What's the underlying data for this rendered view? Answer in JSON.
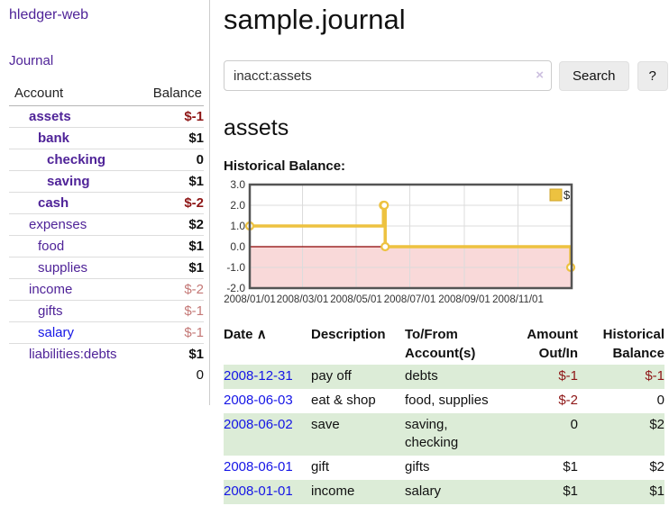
{
  "app": {
    "title": "hledger-web",
    "nav_journal_label": "Journal"
  },
  "colors": {
    "link_purple": "#4f2398",
    "link_blue": "#1515e6",
    "negative_strong": "#8e1616",
    "negative_soft": "#c47876",
    "row_stripe_green": "#dcecd7",
    "divider_gray": "#cccccc",
    "button_bg": "#ececec",
    "chart_line_gold": "#edc240"
  },
  "sidebar": {
    "header": {
      "account": "Account",
      "balance": "Balance"
    },
    "accounts": [
      {
        "name": "assets",
        "indent": 1,
        "bold": true,
        "balance": "$-1",
        "balance_class": "neg"
      },
      {
        "name": "bank",
        "indent": 2,
        "bold": true,
        "balance": "$1",
        "balance_class": ""
      },
      {
        "name": "checking",
        "indent": 3,
        "bold": true,
        "balance": "0",
        "balance_class": ""
      },
      {
        "name": "saving",
        "indent": 3,
        "bold": true,
        "balance": "$1",
        "balance_class": ""
      },
      {
        "name": "cash",
        "indent": 2,
        "bold": true,
        "balance": "$-2",
        "balance_class": "neg"
      },
      {
        "name": "expenses",
        "indent": 1,
        "bold": false,
        "balance": "$2",
        "balance_class": ""
      },
      {
        "name": "food",
        "indent": 2,
        "bold": false,
        "balance": "$1",
        "balance_class": ""
      },
      {
        "name": "supplies",
        "indent": 2,
        "bold": false,
        "balance": "$1",
        "balance_class": ""
      },
      {
        "name": "income",
        "indent": 1,
        "bold": false,
        "balance": "$-2",
        "balance_class": "negsoft"
      },
      {
        "name": "gifts",
        "indent": 2,
        "bold": false,
        "balance": "$-1",
        "balance_class": "negsoft"
      },
      {
        "name": "salary",
        "indent": 2,
        "bold": false,
        "balance": "$-1",
        "balance_class": "negsoft",
        "link_color": "blue"
      },
      {
        "name": "liabilities:debts",
        "indent": 1,
        "bold": false,
        "balance": "$1",
        "balance_class": ""
      }
    ],
    "total": "0"
  },
  "main": {
    "title": "sample.journal",
    "search": {
      "value": "inacct:assets",
      "clear_icon": "×",
      "search_button_label": "Search",
      "help_button_label": "?"
    },
    "account_heading": "assets",
    "chart_label": "Historical Balance:"
  },
  "chart_data": {
    "type": "line",
    "step": true,
    "title": "Historical Balance:",
    "x_type": "date",
    "xlim": [
      "2008-01-01",
      "2009-01-01"
    ],
    "ylim": [
      -2,
      3
    ],
    "yticks": [
      {
        "value": 3,
        "label": "3.0"
      },
      {
        "value": 2,
        "label": "2.0"
      },
      {
        "value": 1,
        "label": "1.0"
      },
      {
        "value": 0,
        "label": "0.0"
      },
      {
        "value": -1,
        "label": "-1.0"
      },
      {
        "value": -2,
        "label": "-2.0"
      }
    ],
    "xticks": [
      {
        "date": "2008-01-01",
        "label": "2008/01/01"
      },
      {
        "date": "2008-03-01",
        "label": "2008/03/01"
      },
      {
        "date": "2008-05-01",
        "label": "2008/05/01"
      },
      {
        "date": "2008-07-01",
        "label": "2008/07/01"
      },
      {
        "date": "2008-09-01",
        "label": "2008/09/01"
      },
      {
        "date": "2008-11-01",
        "label": "2008/11/01"
      }
    ],
    "series": [
      {
        "name": "$",
        "color": "#edc240",
        "points": [
          [
            "2008-01-01",
            1
          ],
          [
            "2008-06-01",
            2
          ],
          [
            "2008-06-02",
            2
          ],
          [
            "2008-06-03",
            0
          ],
          [
            "2008-12-31",
            -1
          ]
        ]
      }
    ],
    "legend_position": "top-right",
    "grid": true,
    "negative_region_color": "#f9d9d9",
    "zero_line_color": "#8b0000",
    "border_color": "#545454",
    "grid_color": "#dcdcdc"
  },
  "register": {
    "sort_icon": "∧",
    "headers": [
      {
        "line1": "Date",
        "line2": "",
        "sorted": true
      },
      {
        "line1": "Description",
        "line2": ""
      },
      {
        "line1": "To/From",
        "line2": "Account(s)"
      },
      {
        "line1": "Amount",
        "line2": "Out/In",
        "align": "right"
      },
      {
        "line1": "Historical",
        "line2": "Balance",
        "align": "right"
      }
    ],
    "rows": [
      {
        "date": "2008-12-31",
        "description": "pay off",
        "accounts": "debts",
        "accounts_line2": "",
        "amount": "$-1",
        "amount_class": "neg",
        "balance": "$-1",
        "balance_class": "neg",
        "shaded": true
      },
      {
        "date": "2008-06-03",
        "description": "eat & shop",
        "accounts": "food, supplies",
        "accounts_line2": "",
        "amount": "$-2",
        "amount_class": "neg",
        "balance": "0",
        "balance_class": "",
        "shaded": false
      },
      {
        "date": "2008-06-02",
        "description": "save",
        "accounts": "saving,",
        "accounts_line2": "checking",
        "amount": "0",
        "amount_class": "",
        "balance": "$2",
        "balance_class": "",
        "shaded": true
      },
      {
        "date": "2008-06-01",
        "description": "gift",
        "accounts": "gifts",
        "accounts_line2": "",
        "amount": "$1",
        "amount_class": "",
        "balance": "$2",
        "balance_class": "",
        "shaded": false
      },
      {
        "date": "2008-01-01",
        "description": "income",
        "accounts": "salary",
        "accounts_line2": "",
        "amount": "$1",
        "amount_class": "",
        "balance": "$1",
        "balance_class": "",
        "shaded": true
      }
    ]
  }
}
